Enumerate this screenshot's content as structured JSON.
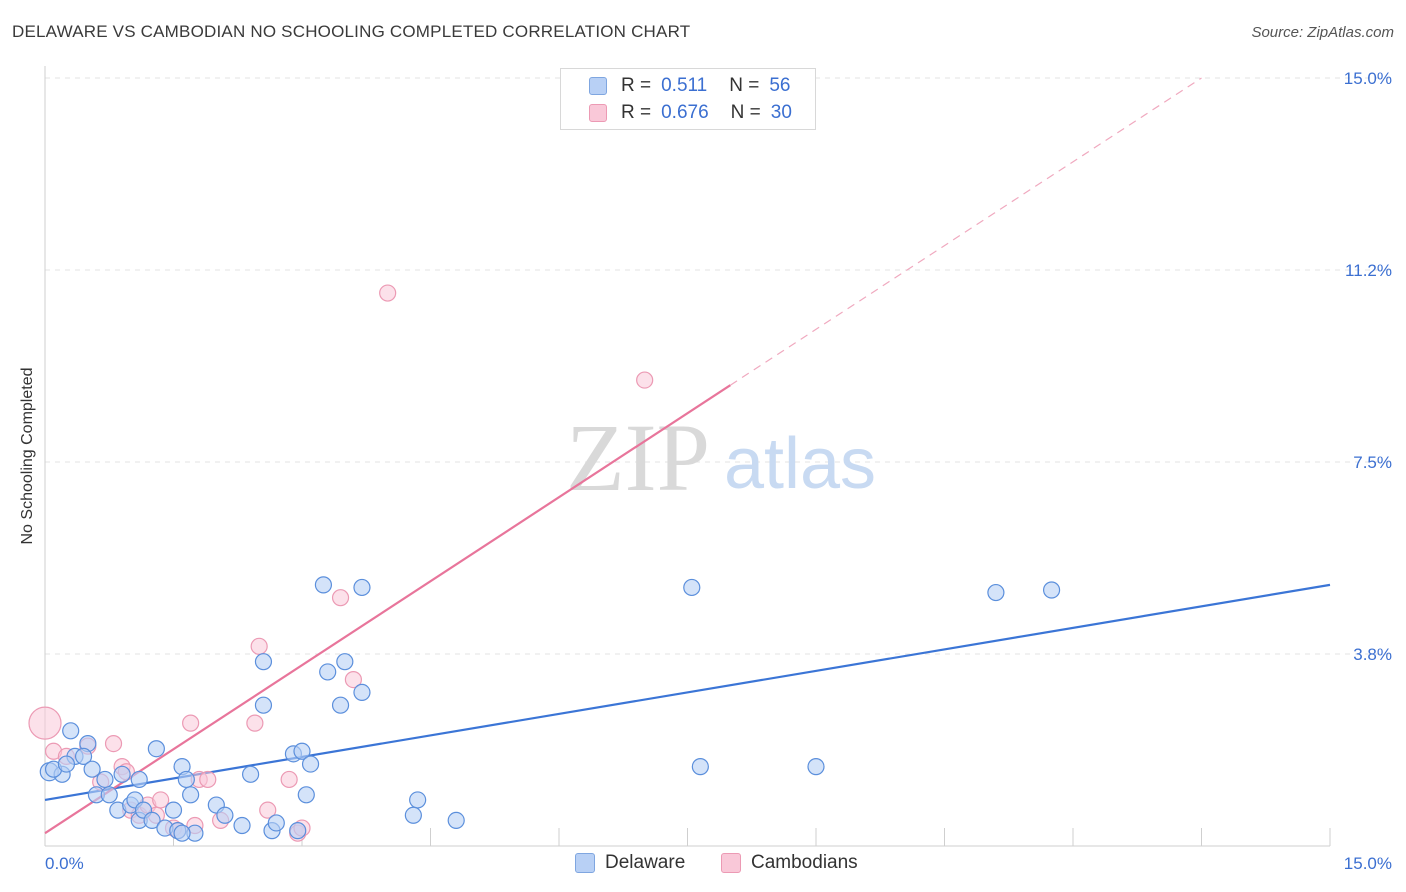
{
  "header": {
    "title": "DELAWARE VS CAMBODIAN NO SCHOOLING COMPLETED CORRELATION CHART",
    "source": "Source: ZipAtlas.com"
  },
  "watermark": {
    "zip": "ZIP",
    "atlas": "atlas"
  },
  "legend": {
    "r_label": "R =",
    "n_label": "N =",
    "entries": [
      {
        "name": "Delaware",
        "r": "0.511",
        "n": "56",
        "color": "#3b75d6"
      },
      {
        "name": "Cambodians",
        "r": "0.676",
        "n": "30",
        "color": "#e8759b"
      }
    ]
  },
  "chart_data": {
    "type": "scatter",
    "title": "DELAWARE VS CAMBODIAN NO SCHOOLING COMPLETED CORRELATION CHART",
    "xlabel": "",
    "ylabel": "No Schooling Completed",
    "xlim": [
      0,
      15
    ],
    "ylim": [
      0,
      15
    ],
    "x_tick_labels": [
      "0.0%",
      "15.0%"
    ],
    "y_tick_labels": [
      "3.8%",
      "7.5%",
      "11.2%",
      "15.0%"
    ],
    "y_ticks": [
      3.75,
      7.5,
      11.25,
      15.0
    ],
    "series": [
      {
        "name": "Delaware",
        "color": "#3b75d6",
        "points": [
          [
            0.05,
            1.45
          ],
          [
            0.2,
            1.4
          ],
          [
            0.3,
            2.25
          ],
          [
            0.35,
            1.75
          ],
          [
            0.5,
            2.0
          ],
          [
            0.45,
            1.75
          ],
          [
            0.55,
            1.5
          ],
          [
            0.6,
            1.0
          ],
          [
            0.7,
            1.3
          ],
          [
            0.75,
            1.0
          ],
          [
            0.85,
            0.7
          ],
          [
            0.9,
            1.4
          ],
          [
            1.0,
            0.8
          ],
          [
            1.05,
            0.9
          ],
          [
            1.1,
            0.5
          ],
          [
            1.15,
            0.7
          ],
          [
            1.25,
            0.5
          ],
          [
            1.3,
            1.9
          ],
          [
            1.4,
            0.35
          ],
          [
            1.5,
            0.7
          ],
          [
            1.55,
            0.3
          ],
          [
            1.6,
            1.55
          ],
          [
            1.7,
            1.0
          ],
          [
            1.75,
            0.25
          ],
          [
            1.6,
            0.25
          ],
          [
            1.65,
            1.3
          ],
          [
            2.0,
            0.8
          ],
          [
            2.1,
            0.6
          ],
          [
            2.3,
            0.4
          ],
          [
            2.4,
            1.4
          ],
          [
            2.55,
            2.75
          ],
          [
            2.55,
            3.6
          ],
          [
            2.65,
            0.3
          ],
          [
            2.7,
            0.45
          ],
          [
            2.9,
            1.8
          ],
          [
            2.95,
            0.3
          ],
          [
            3.0,
            1.85
          ],
          [
            3.05,
            1.0
          ],
          [
            3.1,
            1.6
          ],
          [
            3.25,
            5.1
          ],
          [
            3.3,
            3.4
          ],
          [
            3.45,
            2.75
          ],
          [
            3.5,
            3.6
          ],
          [
            3.7,
            5.05
          ],
          [
            3.7,
            3.0
          ],
          [
            4.35,
            0.9
          ],
          [
            4.3,
            0.6
          ],
          [
            4.8,
            0.5
          ],
          [
            7.55,
            5.05
          ],
          [
            7.65,
            1.55
          ],
          [
            9.0,
            1.55
          ],
          [
            11.1,
            4.95
          ],
          [
            11.75,
            5.0
          ],
          [
            0.1,
            1.5
          ],
          [
            0.25,
            1.6
          ],
          [
            1.1,
            1.3
          ]
        ],
        "trend": {
          "x0": 0,
          "y0": 0.9,
          "x1": 15,
          "y1": 5.1
        }
      },
      {
        "name": "Cambodians",
        "color": "#e8759b",
        "points": [
          [
            0.0,
            2.4
          ],
          [
            0.1,
            1.85
          ],
          [
            0.25,
            1.75
          ],
          [
            0.5,
            1.95
          ],
          [
            0.65,
            1.25
          ],
          [
            0.8,
            2.0
          ],
          [
            0.9,
            1.55
          ],
          [
            0.95,
            1.45
          ],
          [
            1.0,
            0.7
          ],
          [
            1.1,
            0.6
          ],
          [
            1.2,
            0.8
          ],
          [
            1.3,
            0.6
          ],
          [
            1.35,
            0.9
          ],
          [
            1.5,
            0.35
          ],
          [
            1.55,
            0.3
          ],
          [
            1.7,
            2.4
          ],
          [
            1.75,
            0.4
          ],
          [
            1.8,
            1.3
          ],
          [
            1.9,
            1.3
          ],
          [
            2.05,
            0.5
          ],
          [
            2.45,
            2.4
          ],
          [
            2.5,
            3.9
          ],
          [
            2.6,
            0.7
          ],
          [
            2.85,
            1.3
          ],
          [
            2.95,
            0.25
          ],
          [
            3.0,
            0.35
          ],
          [
            3.45,
            4.85
          ],
          [
            3.6,
            3.25
          ],
          [
            4.0,
            10.8
          ],
          [
            7.0,
            9.1
          ]
        ],
        "trend": {
          "x0": 0,
          "y0": 0.25,
          "x1": 8.0,
          "y1": 9.0
        },
        "trend_extension": {
          "x0": 8.0,
          "y0": 9.0,
          "x1": 13.5,
          "y1": 15.0
        }
      }
    ]
  }
}
